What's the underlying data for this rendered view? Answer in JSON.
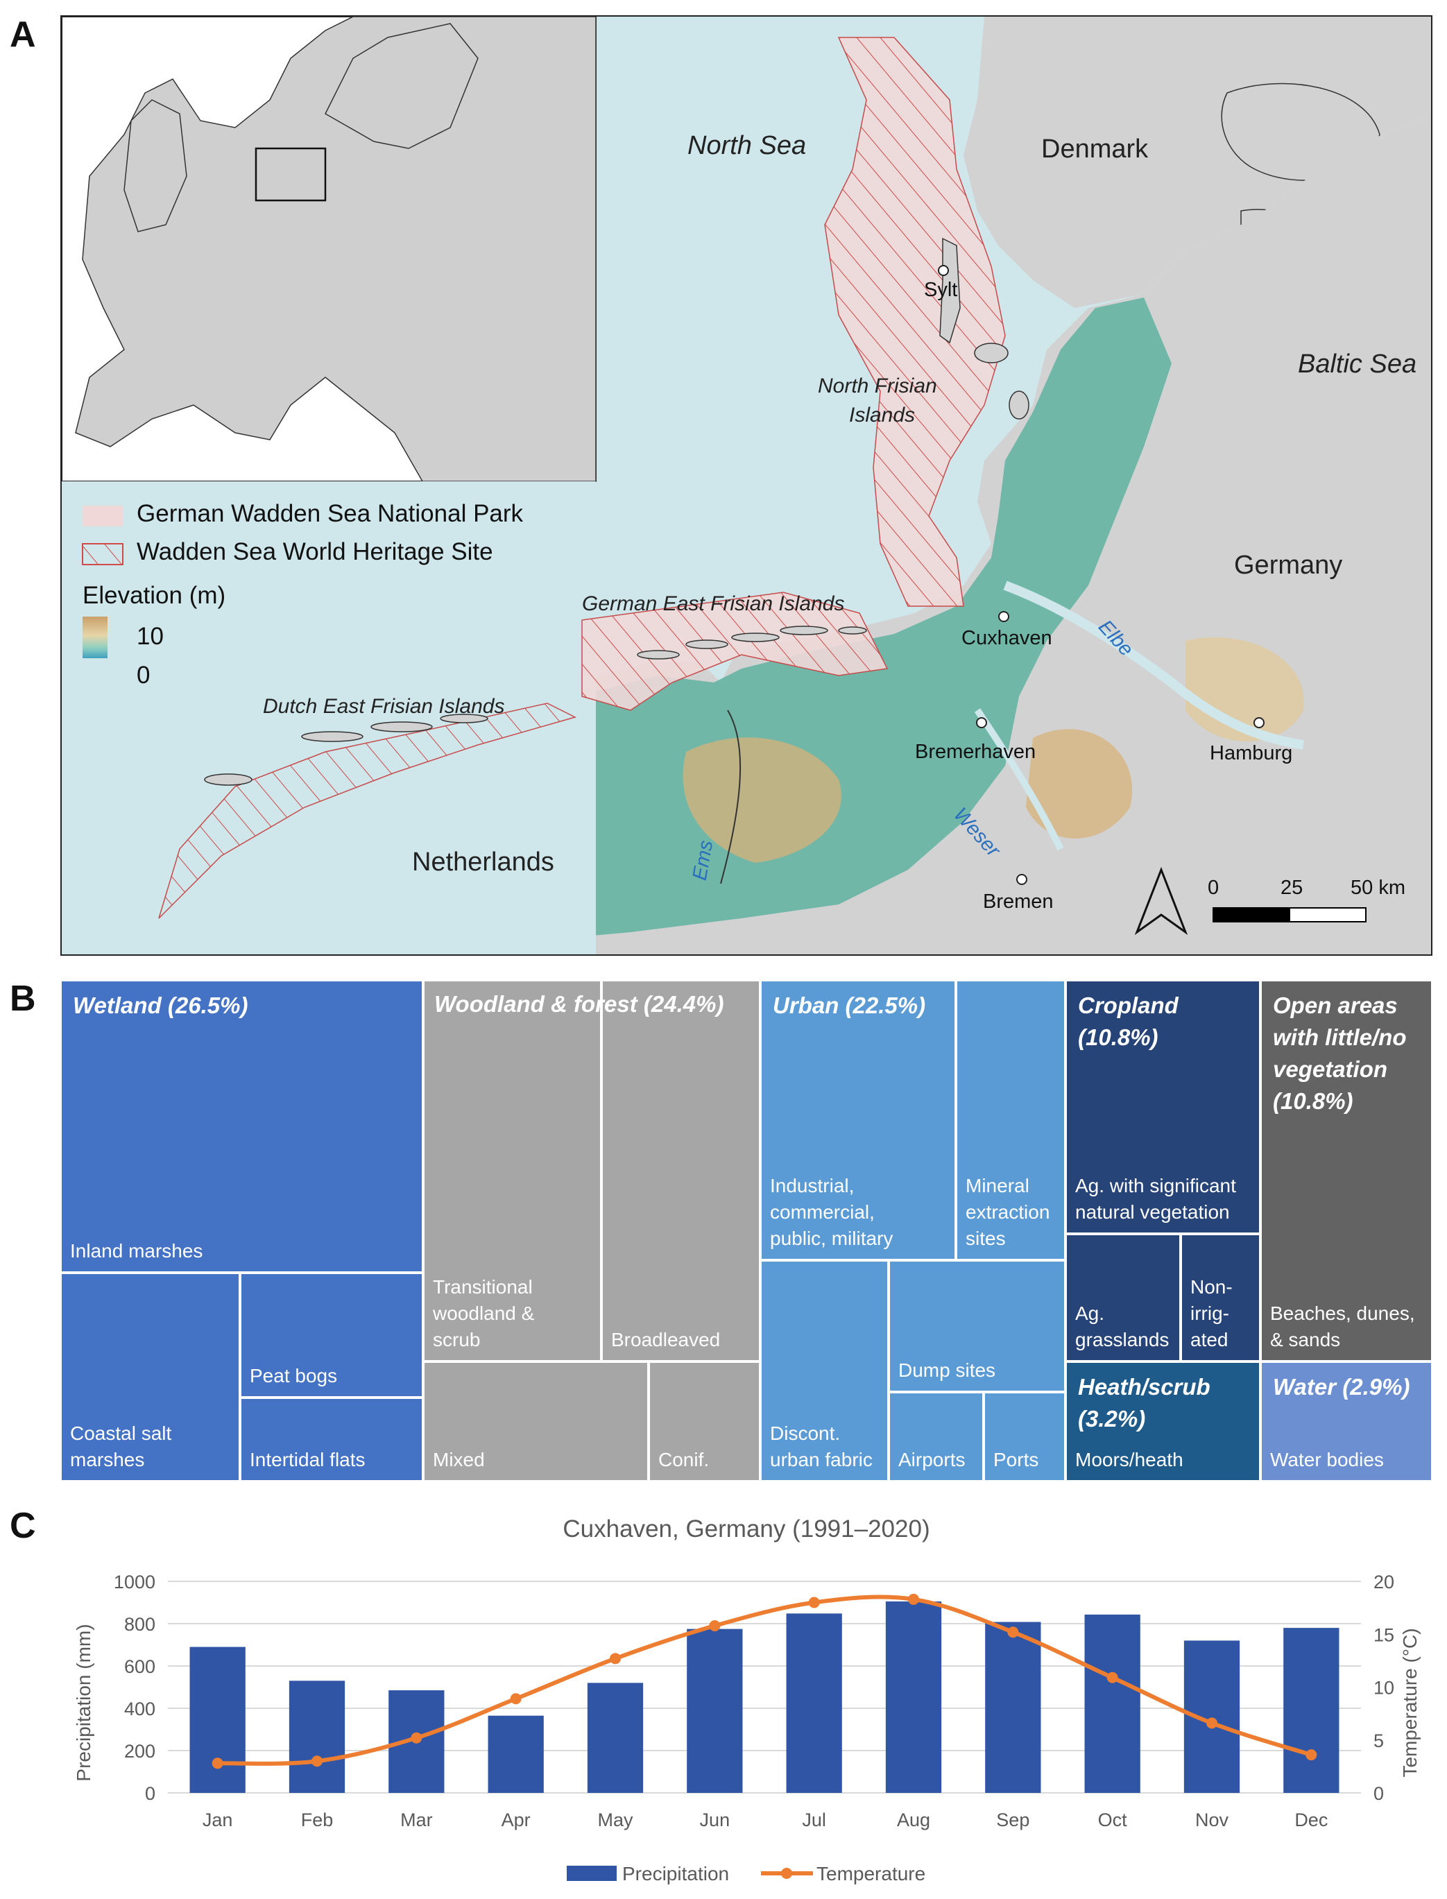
{
  "panels": {
    "a": "A",
    "b": "B",
    "c": "C"
  },
  "map": {
    "seas": {
      "north_sea": "North Sea",
      "baltic_sea": "Baltic Sea"
    },
    "countries": {
      "denmark": "Denmark",
      "germany": "Germany",
      "netherlands": "Netherlands"
    },
    "islands": {
      "north_frisian_1": "North Frisian",
      "north_frisian_2": "Islands",
      "german_east_frisian": "German East Frisian Islands",
      "dutch_east_frisian": "Dutch East Frisian Islands"
    },
    "cities": {
      "sylt": "Sylt",
      "cuxhaven": "Cuxhaven",
      "bremerhaven": "Bremerhaven",
      "hamburg": "Hamburg",
      "bremen": "Bremen"
    },
    "rivers": {
      "elbe": "Elbe",
      "weser": "Weser",
      "ems": "Ems"
    },
    "legend": {
      "national_park": "German Wadden Sea National Park",
      "world_heritage": "Wadden Sea World Heritage Site",
      "elevation_title": "Elevation (m)",
      "elevation_high": "10",
      "elevation_low": "0"
    },
    "scale": {
      "t0": "0",
      "t25": "25",
      "t50": "50 km"
    },
    "colors": {
      "sea": "#cfe6ea",
      "land": "#d2d2d2",
      "lowland": "#5fb3a0",
      "highland": "#d7b27a",
      "park": "#f0d8d8",
      "hatch": "#d04a4a"
    }
  },
  "treemap": {
    "wetland": {
      "title": "Wetland (26.5%)",
      "inland": "Inland marshes",
      "coastal": [
        "Coastal salt",
        "marshes"
      ],
      "peat": "Peat bogs",
      "intertidal": "Intertidal flats"
    },
    "woodland": {
      "title": "Woodland & forest (24.4%)",
      "transitional": [
        "Transitional",
        "woodland &",
        "scrub"
      ],
      "broadleaved": "Broadleaved",
      "mixed": "Mixed",
      "conif": "Conif."
    },
    "urban": {
      "title": "Urban (22.5%)",
      "industrial": [
        "Industrial,",
        "commercial,",
        "public, military"
      ],
      "mineral": [
        "Mineral",
        "extraction",
        "sites"
      ],
      "discont": [
        "Discont.",
        "urban fabric"
      ],
      "dump": "Dump sites",
      "airports": "Airports",
      "ports": "Ports"
    },
    "cropland": {
      "title": [
        "Cropland",
        "(10.8%)"
      ],
      "ag_natural": [
        "Ag. with significant",
        "natural vegetation"
      ],
      "grasslands": [
        "Ag.",
        "grasslands"
      ],
      "nonirrigated": [
        "Non-",
        "irrig-",
        "ated"
      ]
    },
    "open": {
      "title": [
        "Open areas",
        "with little/no",
        "vegetation",
        "(10.8%)"
      ],
      "beaches": [
        "Beaches, dunes,",
        "& sands"
      ]
    },
    "heath": {
      "title": [
        "Heath/scrub",
        "(3.2%)"
      ],
      "moors": "Moors/heath"
    },
    "water": {
      "title": "Water (2.9%)",
      "bodies": "Water bodies"
    },
    "colors": {
      "wetland": "#4472c4",
      "woodland": "#a6a6a6",
      "urban": "#5b9bd5",
      "cropland": "#264478",
      "open": "#636363",
      "heath": "#1f5b8a",
      "water": "#6b8fd0"
    }
  },
  "chart_data": {
    "type": "bar+line",
    "title": "Cuxhaven, Germany (1991–2020)",
    "categories": [
      "Jan",
      "Feb",
      "Mar",
      "Apr",
      "May",
      "Jun",
      "Jul",
      "Aug",
      "Sep",
      "Oct",
      "Nov",
      "Dec"
    ],
    "series": [
      {
        "name": "Precipitation",
        "type": "bar",
        "axis": "left",
        "color": "#2f55a4",
        "values": [
          690,
          530,
          485,
          365,
          520,
          775,
          848,
          905,
          808,
          843,
          720,
          780
        ]
      },
      {
        "name": "Temperature",
        "type": "line",
        "axis": "right",
        "color": "#ed7d31",
        "values": [
          2.8,
          3.0,
          5.2,
          8.9,
          12.7,
          15.8,
          18.0,
          18.3,
          15.2,
          10.9,
          6.6,
          3.6
        ]
      }
    ],
    "ylabel": "Precipitation (mm)",
    "ylabel_right": "Temperature (°C)",
    "ylim": [
      0,
      1000
    ],
    "ylim_right": [
      0,
      20
    ],
    "yticks": [
      0,
      200,
      400,
      600,
      800,
      1000
    ],
    "yticks_right": [
      0,
      5,
      10,
      15,
      20
    ],
    "grid": true,
    "legend": "bottom"
  }
}
